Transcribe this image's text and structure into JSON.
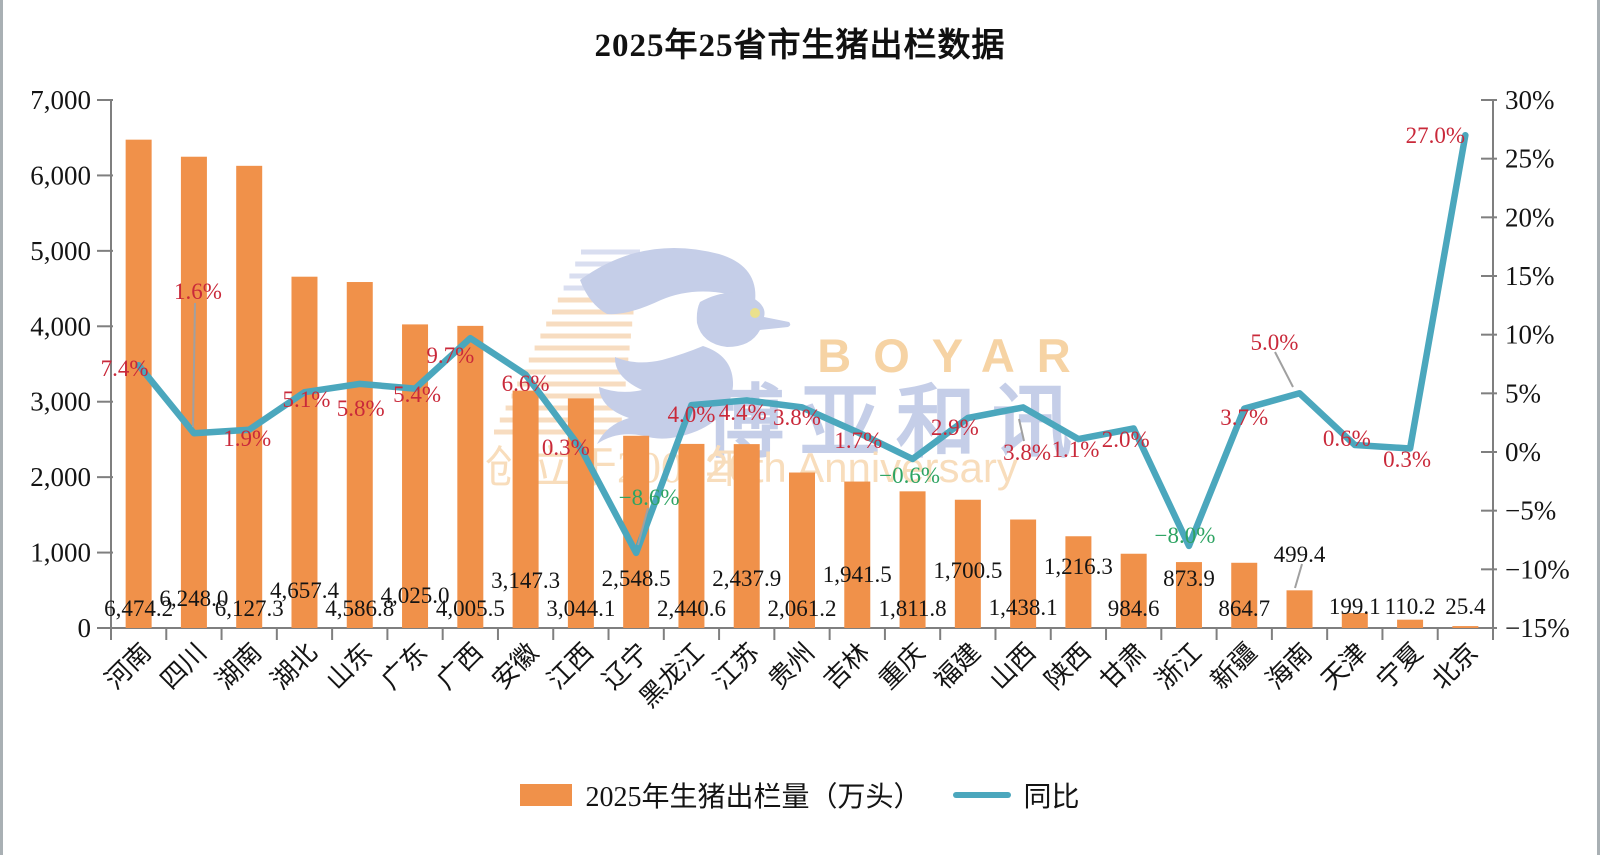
{
  "title": "2025年25省市生猪出栏数据",
  "legend": {
    "bars": "2025年生猪出栏量（万头）",
    "line": "同比"
  },
  "watermark": {
    "brand": "BOYAR",
    "cn": "博亚和讯",
    "founded": "创立于2005年",
    "anniversary": "20th Anniversary"
  },
  "colors": {
    "bar": "#F0914A",
    "line": "#4BA7BD",
    "label_positive": "#C9293A",
    "label_negative": "#2EA463",
    "axis": "#7F7F7F",
    "text": "#141414",
    "leader": "#A0A0A0",
    "wm_blue": "#C5CEE8",
    "wm_peach": "#F7DCC0",
    "wm_text_orange": "#F6D3A4",
    "wm_eye": "#EAE08C"
  },
  "chart_data": {
    "type": "bar+line combo",
    "title": "2025年25省市生猪出栏数据",
    "grid": false,
    "legend_position": "bottom-center",
    "categories": [
      "河南",
      "四川",
      "湖南",
      "湖北",
      "山东",
      "广东",
      "广西",
      "安徽",
      "江西",
      "辽宁",
      "黑龙江",
      "江苏",
      "贵州",
      "吉林",
      "重庆",
      "福建",
      "山西",
      "陕西",
      "甘肃",
      "浙江",
      "新疆",
      "海南",
      "天津",
      "宁夏",
      "北京"
    ],
    "series": [
      {
        "name": "2025年生猪出栏量（万头）",
        "type": "bar",
        "axis": "left",
        "values": [
          6474.2,
          6248.0,
          6127.3,
          4657.4,
          4586.8,
          4025.0,
          4005.5,
          3147.3,
          3044.1,
          2548.5,
          2440.6,
          2437.9,
          2061.2,
          1941.5,
          1811.8,
          1700.5,
          1438.1,
          1216.3,
          984.6,
          873.9,
          864.7,
          499.4,
          199.1,
          110.2,
          25.4
        ],
        "labels": [
          "6,474.2",
          "6,248.0",
          "6,127.3",
          "4,657.4",
          "4,586.8",
          "4,025.0",
          "4,005.5",
          "3,147.3",
          "3,044.1",
          "2,548.5",
          "2,440.6",
          "2,437.9",
          "2,061.2",
          "1,941.5",
          "1,811.8",
          "1,700.5",
          "1,438.1",
          "1,216.3",
          "984.6",
          "873.9",
          "864.7",
          "499.4",
          "199.1",
          "110.2",
          "25.4"
        ]
      },
      {
        "name": "同比",
        "type": "line",
        "axis": "right",
        "values": [
          7.4,
          1.6,
          1.9,
          5.1,
          5.8,
          5.4,
          9.7,
          6.6,
          0.3,
          -8.6,
          4.0,
          4.4,
          3.8,
          1.7,
          -0.6,
          2.9,
          3.8,
          1.1,
          2.0,
          -8.0,
          3.7,
          5.0,
          0.6,
          0.3,
          27.0
        ],
        "labels": [
          "7.4%",
          "1.6%",
          "1.9%",
          "5.1%",
          "5.8%",
          "5.4%",
          "9.7%",
          "6.6%",
          "0.3%",
          "−8.6%",
          "4.0%",
          "4.4%",
          "3.8%",
          "1.7%",
          "−0.6%",
          "2.9%",
          "3.8%",
          "1.1%",
          "2.0%",
          "−8.0%",
          "3.7%",
          "5.0%",
          "0.6%",
          "0.3%",
          "27.0%"
        ]
      }
    ],
    "left_axis": {
      "min": 0,
      "max": 7000,
      "ticks": [
        {
          "v": 0,
          "label": "0"
        },
        {
          "v": 1000,
          "label": "1,000"
        },
        {
          "v": 2000,
          "label": "2,000"
        },
        {
          "v": 3000,
          "label": "3,000"
        },
        {
          "v": 4000,
          "label": "4,000"
        },
        {
          "v": 5000,
          "label": "5,000"
        },
        {
          "v": 6000,
          "label": "6,000"
        },
        {
          "v": 7000,
          "label": "7,000"
        }
      ]
    },
    "right_axis": {
      "min": -15,
      "max": 30,
      "ticks": [
        {
          "v": 30,
          "label": "30%"
        },
        {
          "v": 25,
          "label": "25%"
        },
        {
          "v": 20,
          "label": "20%"
        },
        {
          "v": 15,
          "label": "15%"
        },
        {
          "v": 10,
          "label": "10%"
        },
        {
          "v": 5,
          "label": "5%"
        },
        {
          "v": 0,
          "label": "0%"
        },
        {
          "v": -5,
          "label": "−5%"
        },
        {
          "v": -10,
          "label": "−10%"
        },
        {
          "v": -15,
          "label": "−15%"
        }
      ]
    }
  }
}
